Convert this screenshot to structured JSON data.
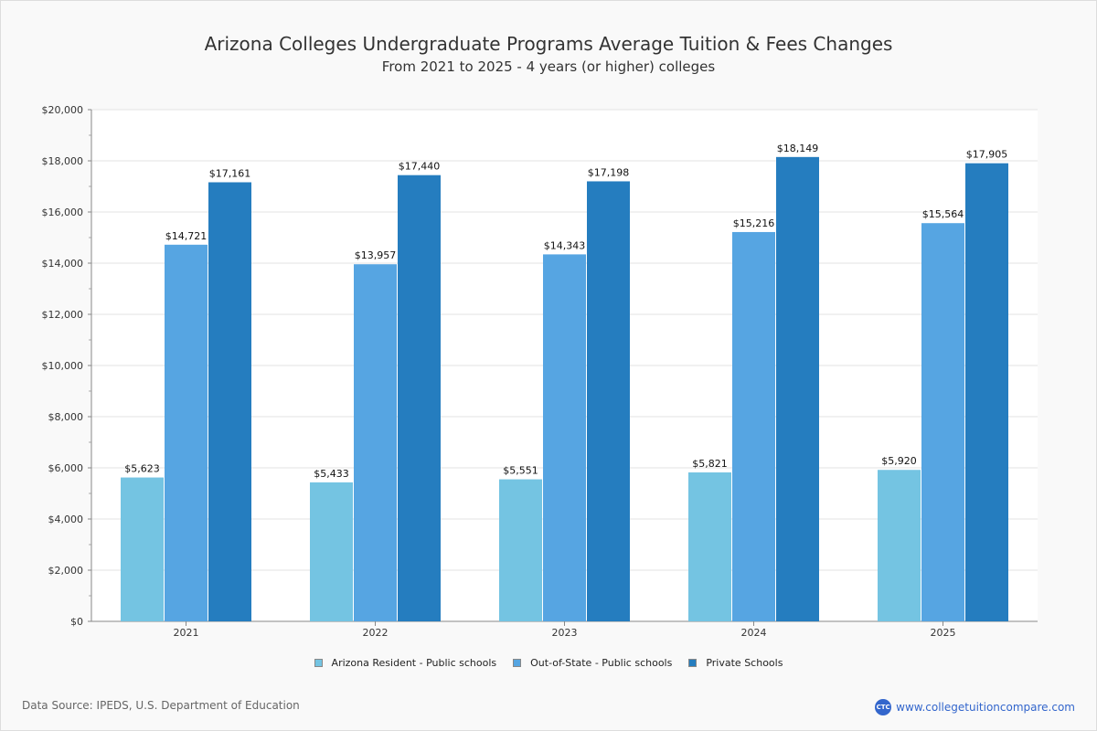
{
  "chart_data": {
    "type": "bar",
    "title": "Arizona Colleges Undergraduate Programs Average Tuition & Fees Changes",
    "subtitle": "From 2021 to 2025 - 4 years (or higher) colleges",
    "categories": [
      "2021",
      "2022",
      "2023",
      "2024",
      "2025"
    ],
    "series": [
      {
        "name": "Arizona Resident - Public schools",
        "color": "#74c4e2",
        "values": [
          5623,
          5433,
          5551,
          5821,
          5920
        ],
        "labels": [
          "$5,623",
          "$5,433",
          "$5,551",
          "$5,821",
          "$5,920"
        ]
      },
      {
        "name": "Out-of-State - Public schools",
        "color": "#56a5e2",
        "values": [
          14721,
          13957,
          14343,
          15216,
          15564
        ],
        "labels": [
          "$14,721",
          "$13,957",
          "$14,343",
          "$15,216",
          "$15,564"
        ]
      },
      {
        "name": "Private Schools",
        "color": "#257dbf",
        "values": [
          17161,
          17440,
          17198,
          18149,
          17905
        ],
        "labels": [
          "$17,161",
          "$17,440",
          "$17,198",
          "$18,149",
          "$17,905"
        ]
      }
    ],
    "ylim": [
      0,
      20000
    ],
    "yticks": [
      0,
      2000,
      4000,
      6000,
      8000,
      10000,
      12000,
      14000,
      16000,
      18000,
      20000
    ],
    "ytick_labels": [
      "$0",
      "$2,000",
      "$4,000",
      "$6,000",
      "$8,000",
      "$10,000",
      "$12,000",
      "$14,000",
      "$16,000",
      "$18,000",
      "$20,000"
    ],
    "grid": true,
    "legend_position": "bottom"
  },
  "footer": {
    "source": "Data Source: IPEDS, U.S. Department of Education",
    "brand": "www.collegetuitioncompare.com",
    "logo": "CTC"
  }
}
